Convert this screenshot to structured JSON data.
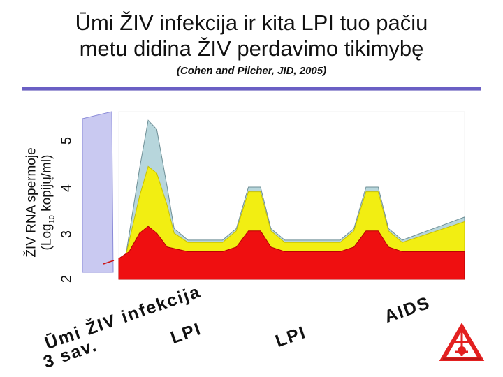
{
  "slide": {
    "title_line1": "Ūmi ŽIV infekcija ir kita LPI tuo pačiu",
    "title_line2": "metu didina ŽIV perdavimo tikimybę",
    "citation": "(Cohen and Pilcher, JID, 2005)"
  },
  "chart_data": {
    "type": "area",
    "ylabel_line1": "ŽIV RNA spermoje",
    "ylabel_line2_pre": "(Log",
    "ylabel_line2_sub": "10",
    "ylabel_line2_post": " kopijų/ml)",
    "yticks": [
      "5",
      "4",
      "3",
      "2"
    ],
    "ylim": [
      2,
      5.5
    ],
    "phases": [
      "Ūmi ŽIV infekcija 3 sav.",
      "LPI",
      "LPI",
      "AIDS"
    ],
    "phase_labels": {
      "acute_line1": "Ūmi ŽIV infekcija",
      "acute_line2": "3 sav.",
      "lpi1": "LPI",
      "lpi2": "LPI",
      "aids": "AIDS"
    },
    "series": [
      {
        "color": "#b7d6dc",
        "points": [
          [
            0,
            2.45
          ],
          [
            0.02,
            2.5
          ],
          [
            0.06,
            4.4
          ],
          [
            0.085,
            5.45
          ],
          [
            0.11,
            5.25
          ],
          [
            0.14,
            4.0
          ],
          [
            0.16,
            3.1
          ],
          [
            0.2,
            2.85
          ],
          [
            0.3,
            2.85
          ],
          [
            0.34,
            3.1
          ],
          [
            0.375,
            4.0
          ],
          [
            0.41,
            4.0
          ],
          [
            0.44,
            3.1
          ],
          [
            0.48,
            2.85
          ],
          [
            0.64,
            2.85
          ],
          [
            0.68,
            3.1
          ],
          [
            0.715,
            4.0
          ],
          [
            0.75,
            4.0
          ],
          [
            0.78,
            3.1
          ],
          [
            0.82,
            2.85
          ],
          [
            1.0,
            3.35
          ]
        ]
      },
      {
        "color": "#f2ee12",
        "points": [
          [
            0,
            2.45
          ],
          [
            0.02,
            2.5
          ],
          [
            0.06,
            3.8
          ],
          [
            0.085,
            4.45
          ],
          [
            0.11,
            4.3
          ],
          [
            0.14,
            3.6
          ],
          [
            0.16,
            3.0
          ],
          [
            0.2,
            2.8
          ],
          [
            0.3,
            2.8
          ],
          [
            0.34,
            3.05
          ],
          [
            0.375,
            3.9
          ],
          [
            0.41,
            3.9
          ],
          [
            0.44,
            3.05
          ],
          [
            0.48,
            2.8
          ],
          [
            0.64,
            2.8
          ],
          [
            0.68,
            3.05
          ],
          [
            0.715,
            3.9
          ],
          [
            0.75,
            3.9
          ],
          [
            0.78,
            3.05
          ],
          [
            0.82,
            2.8
          ],
          [
            1.0,
            3.25
          ]
        ]
      },
      {
        "color": "#ef0f10",
        "points": [
          [
            0,
            2.45
          ],
          [
            0.03,
            2.6
          ],
          [
            0.06,
            3.0
          ],
          [
            0.085,
            3.15
          ],
          [
            0.11,
            3.0
          ],
          [
            0.14,
            2.7
          ],
          [
            0.2,
            2.6
          ],
          [
            0.3,
            2.6
          ],
          [
            0.34,
            2.7
          ],
          [
            0.375,
            3.05
          ],
          [
            0.41,
            3.05
          ],
          [
            0.44,
            2.7
          ],
          [
            0.48,
            2.6
          ],
          [
            0.64,
            2.6
          ],
          [
            0.68,
            2.7
          ],
          [
            0.715,
            3.05
          ],
          [
            0.75,
            3.05
          ],
          [
            0.78,
            2.7
          ],
          [
            0.82,
            2.6
          ],
          [
            1.0,
            2.6
          ]
        ]
      }
    ]
  }
}
